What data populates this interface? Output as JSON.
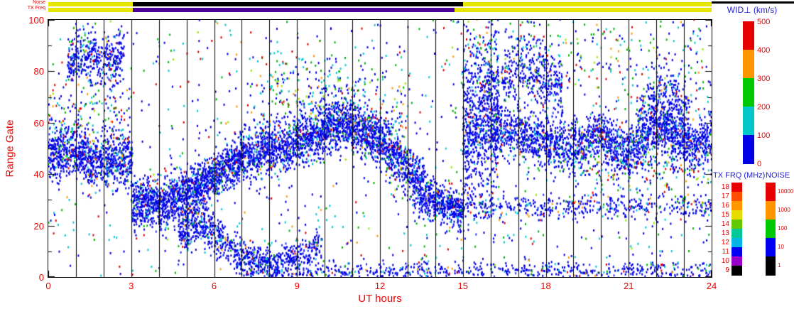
{
  "colors": {
    "axis_text": "#ee0000",
    "heading_text": "#2222cc",
    "grid_line": "#000000",
    "background": "#ffffff"
  },
  "strips": {
    "noise_label": "Noise",
    "txfreq_label": "TX Freq",
    "noise_segments": [
      {
        "from": 0,
        "to": 3.05,
        "color": "#e6e600"
      },
      {
        "from": 3.05,
        "to": 15.0,
        "color": "#000000"
      },
      {
        "from": 15.0,
        "to": 24,
        "color": "#e6e600"
      }
    ],
    "tx_segments": [
      {
        "from": 0,
        "to": 3.05,
        "color": "#e6e600"
      },
      {
        "from": 3.05,
        "to": 14.7,
        "color": "#4b0096"
      },
      {
        "from": 14.7,
        "to": 24,
        "color": "#e6e600"
      }
    ]
  },
  "colorbars": {
    "wid": {
      "title": "WID⊥ (km/s)",
      "units": "km/s",
      "range": [
        0,
        500
      ],
      "tick_labels_top_to_bottom": [
        "500",
        "400",
        "300",
        "200",
        "100",
        "0"
      ],
      "segments_top_to_bottom": [
        "#e60000",
        "#ff9600",
        "#00c800",
        "#00c8c8",
        "#0000e6"
      ]
    },
    "txfrq": {
      "title": "TX FRQ (MHz)",
      "units": "MHz",
      "labels_top_to_bottom": [
        "18",
        "17",
        "16",
        "15",
        "14",
        "13",
        "12",
        "11",
        "10",
        "9"
      ],
      "segments_top_to_bottom": [
        "#e60000",
        "#ff5000",
        "#ff9600",
        "#e6dc00",
        "#64c800",
        "#00c896",
        "#00b4e6",
        "#0000f0",
        "#9600c8",
        "#000000"
      ]
    },
    "noise": {
      "title": "NOISE",
      "labels_top_to_bottom": [
        "10000",
        "1000",
        "100",
        "10",
        "1"
      ],
      "segments_top_to_bottom": [
        "#e60000",
        "#ff9600",
        "#00c800",
        "#0000f0",
        "#000000"
      ]
    }
  },
  "chart_data": {
    "type": "scatter",
    "title": "WID⊥ (km/s)",
    "xlabel": "UT hours",
    "ylabel": "Range Gate",
    "xlim": [
      0,
      24
    ],
    "ylim": [
      0,
      100
    ],
    "x_major_ticks": [
      0,
      3,
      6,
      9,
      12,
      15,
      18,
      21,
      24
    ],
    "x_tick_labels": [
      "0",
      "3",
      "6",
      "9",
      "12",
      "15",
      "18",
      "21",
      "24"
    ],
    "x_minor_step": 1,
    "y_major_ticks": [
      0,
      20,
      40,
      60,
      80,
      100
    ],
    "y_tick_labels": [
      "0",
      "20",
      "40",
      "60",
      "80",
      "100"
    ],
    "y_minor_step": 10,
    "hour_gridlines_every": 1,
    "grid": true,
    "legend_position": "right",
    "notes": "Radar range-time scatter of perpendicular spectral width; points are mostly low width (blue, <100 km/s) with sparse cyan/green/orange/red higher-width echoes. Vertical black lines mark each UT hour.",
    "palettes": {
      "dense": {
        "colors": [
          "#0000e6",
          "#2832ff",
          "#00c8d2",
          "#00b400",
          "#ff9600",
          "#e10000"
        ],
        "weights": [
          0.78,
          0.1,
          0.06,
          0.03,
          0.015,
          0.015
        ]
      },
      "sparse": {
        "colors": [
          "#0000e6",
          "#00c8d2",
          "#00b400",
          "#e10000",
          "#ff9600",
          "#96e600"
        ],
        "weights": [
          0.4,
          0.22,
          0.16,
          0.12,
          0.06,
          0.04
        ]
      }
    },
    "features": [
      {
        "name": "early-main-band",
        "t": [
          0,
          3.05
        ],
        "path": [
          [
            0,
            47
          ],
          [
            0.8,
            49
          ],
          [
            1.6,
            44
          ],
          [
            2.4,
            46
          ],
          [
            3.05,
            44
          ]
        ],
        "sigma": 5,
        "n": 950,
        "palette": "dense"
      },
      {
        "name": "early-upper-scatter",
        "t": [
          0,
          3.05
        ],
        "path": [
          [
            0,
            62
          ],
          [
            3.05,
            60
          ]
        ],
        "sigma": 9,
        "n": 160,
        "palette": "sparse"
      },
      {
        "name": "early-top-blob",
        "t": [
          0.7,
          2.75
        ],
        "path": [
          [
            0.7,
            83
          ],
          [
            1.4,
            87
          ],
          [
            2.1,
            82
          ],
          [
            2.75,
            88
          ]
        ],
        "sigma": 5,
        "n": 420,
        "palette": "dense"
      },
      {
        "name": "rising-band",
        "t": [
          3.05,
          7
        ],
        "path": [
          [
            3.05,
            29
          ],
          [
            4,
            28
          ],
          [
            5,
            32
          ],
          [
            6,
            39
          ],
          [
            7,
            46
          ]
        ],
        "sigma": 4.5,
        "n": 1500,
        "palette": "dense"
      },
      {
        "name": "midday-hump",
        "t": [
          7,
          13.6
        ],
        "path": [
          [
            7,
            47
          ],
          [
            8,
            50
          ],
          [
            9,
            52
          ],
          [
            10,
            57
          ],
          [
            10.8,
            60
          ],
          [
            11.5,
            56
          ],
          [
            12.3,
            50
          ],
          [
            13,
            42
          ],
          [
            13.6,
            35
          ]
        ],
        "sigma": 5,
        "n": 2300,
        "palette": "dense"
      },
      {
        "name": "hump-upper-scatter",
        "t": [
          7.2,
          13
        ],
        "path": [
          [
            7.2,
            66
          ],
          [
            10,
            73
          ],
          [
            13,
            60
          ]
        ],
        "sigma": 9,
        "n": 320,
        "palette": "sparse"
      },
      {
        "name": "descend-tail",
        "t": [
          13.6,
          15
        ],
        "path": [
          [
            13.6,
            33
          ],
          [
            14.3,
            28
          ],
          [
            15,
            25
          ]
        ],
        "sigma": 4,
        "n": 380,
        "palette": "dense"
      },
      {
        "name": "low-blobs",
        "t": [
          4.7,
          6.4
        ],
        "path": [
          [
            4.7,
            17
          ],
          [
            5.4,
            22
          ],
          [
            6.4,
            14
          ]
        ],
        "sigma": 4,
        "n": 380,
        "palette": "dense"
      },
      {
        "name": "low-curve",
        "t": [
          6.4,
          9.9
        ],
        "path": [
          [
            6.4,
            12
          ],
          [
            7.2,
            7
          ],
          [
            8.2,
            5
          ],
          [
            9.1,
            8
          ],
          [
            9.9,
            12
          ]
        ],
        "sigma": 3.5,
        "n": 480,
        "palette": "dense"
      },
      {
        "name": "bottom-strip",
        "t": [
          6.8,
          24
        ],
        "path": [
          [
            6.8,
            2
          ],
          [
            24,
            2
          ]
        ],
        "sigma": 2,
        "n": 750,
        "palette": "dense"
      },
      {
        "name": "hour15-columns",
        "t": [
          15,
          16.3
        ],
        "path": [
          [
            15,
            58
          ],
          [
            15.6,
            62
          ],
          [
            16.3,
            68
          ]
        ],
        "sigma": 16,
        "n": 800,
        "palette": "dense"
      },
      {
        "name": "evening-band",
        "t": [
          16,
          24
        ],
        "path": [
          [
            16,
            55
          ],
          [
            17,
            57
          ],
          [
            18,
            52
          ],
          [
            19,
            50
          ],
          [
            20,
            55
          ],
          [
            20.8,
            48
          ],
          [
            21.5,
            52
          ],
          [
            22,
            60
          ],
          [
            22.7,
            55
          ],
          [
            23.3,
            50
          ],
          [
            24,
            55
          ]
        ],
        "sigma": 5,
        "n": 2100,
        "palette": "dense"
      },
      {
        "name": "late-midline",
        "t": [
          13.2,
          24
        ],
        "path": [
          [
            13.2,
            27
          ],
          [
            24,
            27
          ]
        ],
        "sigma": 2.5,
        "n": 520,
        "palette": "dense"
      },
      {
        "name": "evening-top-1",
        "t": [
          16.4,
          18.6
        ],
        "path": [
          [
            16.4,
            78
          ],
          [
            17.3,
            82
          ],
          [
            18.6,
            72
          ]
        ],
        "sigma": 6,
        "n": 360,
        "palette": "dense"
      },
      {
        "name": "evening-top-2",
        "t": [
          21.3,
          23.2
        ],
        "path": [
          [
            21.3,
            60
          ],
          [
            22,
            70
          ],
          [
            23.2,
            62
          ]
        ],
        "sigma": 7,
        "n": 320,
        "palette": "dense"
      },
      {
        "name": "evening-low-scatter",
        "t": [
          19,
          24
        ],
        "path": [
          [
            19,
            40
          ],
          [
            24,
            42
          ]
        ],
        "sigma": 6,
        "n": 200,
        "palette": "sparse"
      },
      {
        "name": "upper-late-scatter",
        "t": [
          15,
          24
        ],
        "path": [
          [
            15,
            86
          ],
          [
            24,
            84
          ]
        ],
        "sigma": 9,
        "n": 260,
        "palette": "sparse"
      },
      {
        "name": "background-speckle",
        "t": [
          0,
          24
        ],
        "uniform": true,
        "path": [
          [
            0,
            50
          ],
          [
            24,
            50
          ]
        ],
        "sigma": 60,
        "n": 1000,
        "palette": "sparse"
      }
    ]
  }
}
